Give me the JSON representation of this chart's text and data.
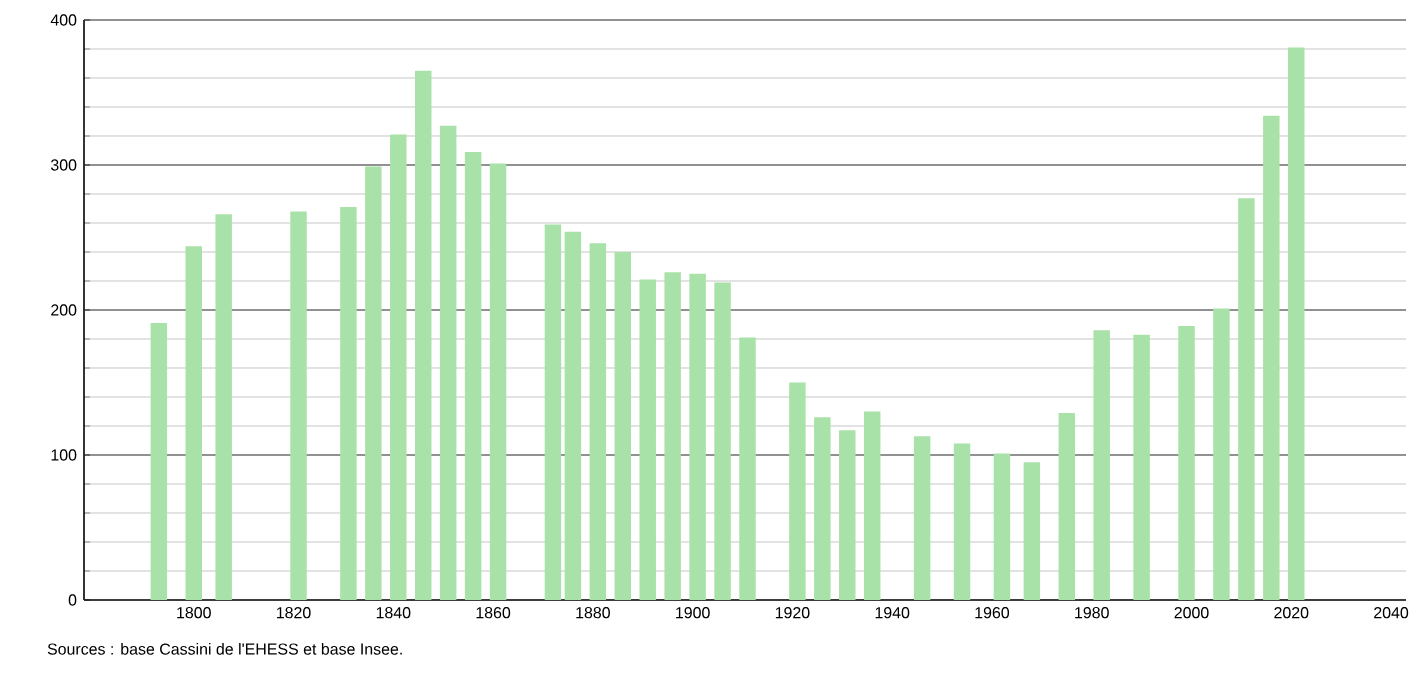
{
  "chart_data": {
    "type": "bar",
    "x": [
      1793,
      1800,
      1806,
      1821,
      1831,
      1836,
      1841,
      1846,
      1851,
      1856,
      1861,
      1872,
      1876,
      1881,
      1886,
      1891,
      1896,
      1901,
      1906,
      1911,
      1921,
      1926,
      1931,
      1936,
      1946,
      1954,
      1962,
      1968,
      1975,
      1982,
      1990,
      1999,
      2006,
      2011,
      2016,
      2021
    ],
    "values": [
      191,
      244,
      266,
      268,
      271,
      299,
      321,
      365,
      327,
      309,
      301,
      259,
      254,
      246,
      240,
      221,
      226,
      225,
      219,
      181,
      150,
      126,
      117,
      130,
      113,
      108,
      101,
      95,
      129,
      186,
      183,
      189,
      201,
      277,
      334,
      381
    ],
    "color": "#a8e2a8",
    "xlim": [
      1778,
      2043
    ],
    "ylim": [
      0,
      400
    ],
    "xticks": [
      1800,
      1820,
      1840,
      1860,
      1880,
      1900,
      1920,
      1940,
      1960,
      1980,
      2000,
      2020,
      2040
    ],
    "yticks": [
      0,
      {
        "value": 20,
        "label": null
      },
      {
        "value": 40,
        "label": null
      },
      {
        "value": 60,
        "label": null
      },
      {
        "value": 80,
        "label": null
      },
      100,
      {
        "value": 120,
        "label": null
      },
      {
        "value": 140,
        "label": null
      },
      {
        "value": 160,
        "label": null
      },
      {
        "value": 180,
        "label": null
      },
      200,
      {
        "value": 220,
        "label": null
      },
      {
        "value": 240,
        "label": null
      },
      {
        "value": 260,
        "label": null
      },
      {
        "value": 280,
        "label": null
      },
      300,
      {
        "value": 320,
        "label": null
      },
      {
        "value": 340,
        "label": null
      },
      {
        "value": 360,
        "label": null
      },
      {
        "value": 380,
        "label": null
      },
      400
    ],
    "grid": "y",
    "annotations": [
      "Sources : base Cassini de l'EHESS et base Insee."
    ]
  }
}
